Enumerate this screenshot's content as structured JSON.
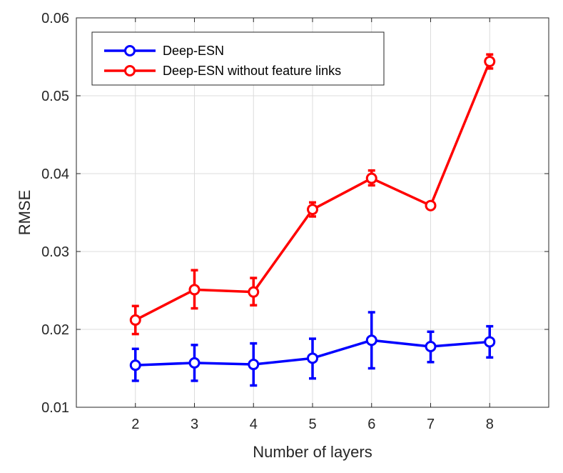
{
  "chart_data": {
    "type": "line",
    "xlabel": "Number of layers",
    "ylabel": "RMSE",
    "x": [
      2,
      3,
      4,
      5,
      6,
      7,
      8
    ],
    "xlim": [
      1,
      9
    ],
    "ylim": [
      0.01,
      0.06
    ],
    "xticks": [
      "2",
      "3",
      "4",
      "5",
      "6",
      "7",
      "8"
    ],
    "yticks": [
      "0.01",
      "0.02",
      "0.03",
      "0.04",
      "0.05",
      "0.06"
    ],
    "ytick_values": [
      0.01,
      0.02,
      0.03,
      0.04,
      0.05,
      0.06
    ],
    "grid": true,
    "legend_position": "top-left",
    "error_bars": true,
    "series": [
      {
        "name": "Deep-ESN",
        "color": "#0000ff",
        "marker": "circle",
        "values": [
          0.0154,
          0.0157,
          0.0155,
          0.0163,
          0.0186,
          0.0178,
          0.0184
        ],
        "error_low": [
          0.0134,
          0.0134,
          0.0128,
          0.0137,
          0.015,
          0.0158,
          0.0164
        ],
        "error_high": [
          0.0175,
          0.018,
          0.0182,
          0.0188,
          0.0222,
          0.0197,
          0.0204
        ]
      },
      {
        "name": "Deep-ESN without feature links",
        "color": "#ff0000",
        "marker": "circle",
        "values": [
          0.0212,
          0.0251,
          0.0248,
          0.0354,
          0.0394,
          0.0359,
          0.0544
        ],
        "error_low": [
          0.0194,
          0.0227,
          0.0231,
          0.0345,
          0.0385,
          0.0355,
          0.0535
        ],
        "error_high": [
          0.023,
          0.0276,
          0.0266,
          0.0363,
          0.0404,
          0.0363,
          0.0553
        ]
      }
    ]
  }
}
